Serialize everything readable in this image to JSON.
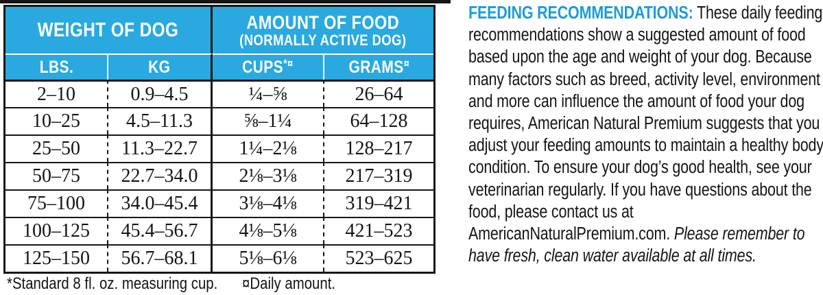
{
  "colors": {
    "table_header_blue": "#29A9E0",
    "heading_blue": "#1B9CD8",
    "border_black": "#161616"
  },
  "table": {
    "weight_header": "WEIGHT OF DOG",
    "amount_header_line1": "AMOUNT OF FOOD",
    "amount_header_line2": "(NORMALLY ACTIVE DOG)",
    "columns": {
      "lbs": "LBS.",
      "kg": "KG",
      "cups": "CUPS",
      "cups_sup": "*¤",
      "grams": "GRAMS",
      "grams_sup": "¤"
    },
    "rows": [
      [
        "2–10",
        "0.9–4.5",
        "¼–⅝",
        "26–64"
      ],
      [
        "10–25",
        "4.5–11.3",
        "⅝–1¼",
        "64–128"
      ],
      [
        "25–50",
        "11.3–22.7",
        "1¼–2⅛",
        "128–217"
      ],
      [
        "50–75",
        "22.7–34.0",
        "2⅛–3⅛",
        "217–319"
      ],
      [
        "75–100",
        "34.0–45.4",
        "3⅛–4⅛",
        "319–421"
      ],
      [
        "100–125",
        "45.4–56.7",
        "4⅛–5⅛",
        "421–523"
      ],
      [
        "125–150",
        "56.7–68.1",
        "5⅛–6⅛",
        "523–625"
      ]
    ],
    "footnote_cup": "*Standard 8 fl. oz. measuring cup.",
    "footnote_daily": "¤Daily amount."
  },
  "feeding": {
    "heading": "FEEDING RECOMMENDATIONS:",
    "body": "These daily feeding recommendations show a suggested amount of food based upon the age and weight of your dog. Because many factors such as breed, activity level, environment and more can influence the amount of food your dog requires, American Natural Premium suggests that you adjust your feeding amounts to maintain a healthy body condition. To ensure your dog’s good health, see your veterinarian regularly. If you have questions about the food, please contact us at AmericanNaturalPremium.com.",
    "reminder": "Please remember to have fresh, clean water available at all times."
  }
}
